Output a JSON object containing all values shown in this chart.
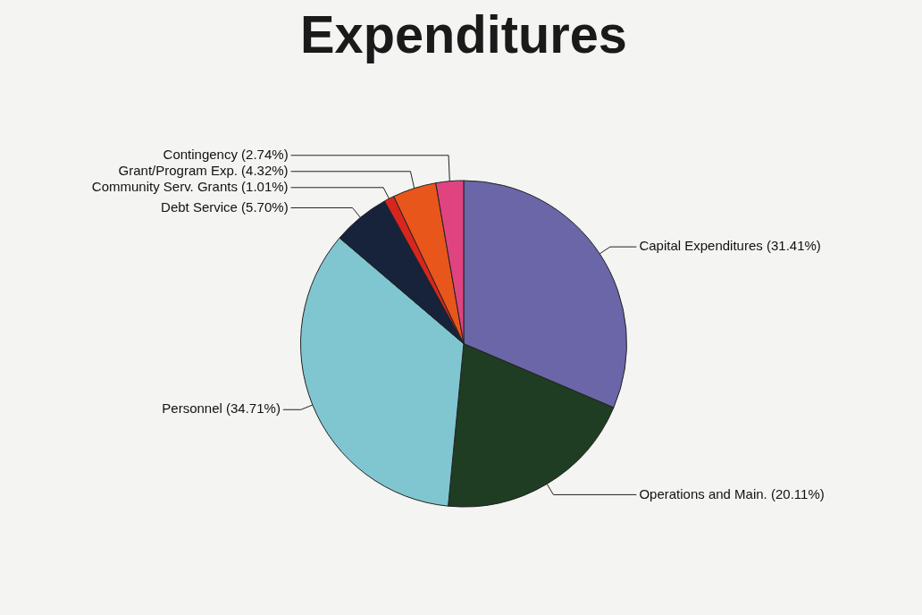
{
  "chart_data": {
    "type": "pie",
    "title": "Expenditures",
    "categories": [
      "Capital Expenditures (31.41%)",
      "Operations and Main. (20.11%)",
      "Personnel (34.71%)",
      "Debt Service (5.70%)",
      "Community Serv. Grants (1.01%)",
      "Grant/Program Exp. (4.32%)",
      "Contingency (2.74%)"
    ],
    "values": [
      31.41,
      20.11,
      34.71,
      5.7,
      1.01,
      4.32,
      2.74
    ],
    "colors": [
      "#6a66a8",
      "#1f3d22",
      "#80c6d0",
      "#16233a",
      "#d8261e",
      "#e8561c",
      "#e04480"
    ],
    "legend": false
  }
}
